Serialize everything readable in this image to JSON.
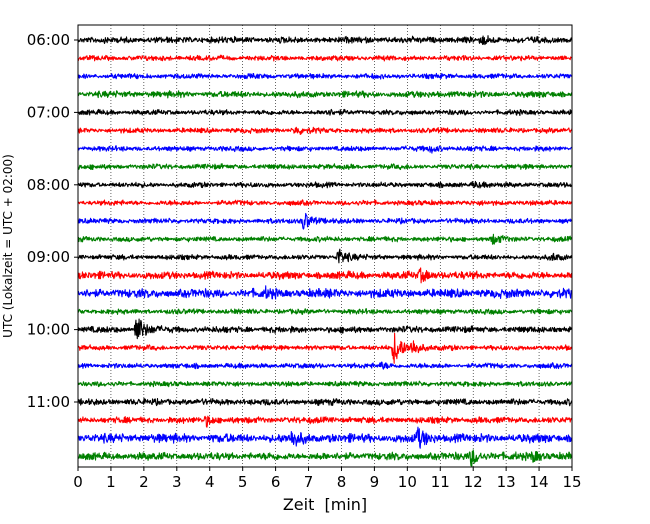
{
  "chart_data": {
    "type": "line",
    "title": "",
    "xlabel": "Zeit  [min]",
    "ylabel": "UTC (Lokalzeit = UTC + 02:00)",
    "xlim": [
      0,
      15
    ],
    "x_ticks": [
      "0",
      "1",
      "2",
      "3",
      "4",
      "5",
      "6",
      "7",
      "8",
      "9",
      "10",
      "11",
      "12",
      "13",
      "14",
      "15"
    ],
    "y_ticks": [
      "06:00",
      "07:00",
      "08:00",
      "09:00",
      "10:00",
      "11:00"
    ],
    "grid": "vertical-dotted",
    "colors": [
      "#000000",
      "#ff0000",
      "#0000ff",
      "#008000"
    ],
    "traces": [
      {
        "start": "06:00",
        "color": "#000000",
        "amplitude": 0.25,
        "events": [
          {
            "t": 12.3,
            "amp": 0.35
          }
        ]
      },
      {
        "start": "06:15",
        "color": "#ff0000",
        "amplitude": 0.2,
        "events": []
      },
      {
        "start": "06:30",
        "color": "#0000ff",
        "amplitude": 0.2,
        "events": []
      },
      {
        "start": "06:45",
        "color": "#008000",
        "amplitude": 0.25,
        "events": []
      },
      {
        "start": "07:00",
        "color": "#000000",
        "amplitude": 0.2,
        "events": [
          {
            "t": 7.5,
            "amp": 0.3
          }
        ]
      },
      {
        "start": "07:15",
        "color": "#ff0000",
        "amplitude": 0.2,
        "events": [
          {
            "t": 6.6,
            "amp": 0.35
          }
        ]
      },
      {
        "start": "07:30",
        "color": "#0000ff",
        "amplitude": 0.2,
        "events": [
          {
            "t": 10.7,
            "amp": 0.3
          }
        ]
      },
      {
        "start": "07:45",
        "color": "#008000",
        "amplitude": 0.2,
        "events": []
      },
      {
        "start": "08:00",
        "color": "#000000",
        "amplitude": 0.2,
        "events": [
          {
            "t": 12.0,
            "amp": 0.3
          }
        ]
      },
      {
        "start": "08:15",
        "color": "#ff0000",
        "amplitude": 0.2,
        "events": []
      },
      {
        "start": "08:30",
        "color": "#0000ff",
        "amplitude": 0.2,
        "events": [
          {
            "t": 6.85,
            "amp": 1.0
          }
        ]
      },
      {
        "start": "08:45",
        "color": "#008000",
        "amplitude": 0.2,
        "events": [
          {
            "t": 12.6,
            "amp": 0.45
          }
        ]
      },
      {
        "start": "09:00",
        "color": "#000000",
        "amplitude": 0.2,
        "events": [
          {
            "t": 7.9,
            "amp": 0.9
          },
          {
            "t": 14.4,
            "amp": 0.3
          }
        ]
      },
      {
        "start": "09:15",
        "color": "#ff0000",
        "amplitude": 0.3,
        "events": [
          {
            "t": 10.4,
            "amp": 0.6
          }
        ]
      },
      {
        "start": "09:30",
        "color": "#0000ff",
        "amplitude": 0.35,
        "events": [
          {
            "t": 5.7,
            "amp": 0.3
          }
        ]
      },
      {
        "start": "09:45",
        "color": "#008000",
        "amplitude": 0.2,
        "events": []
      },
      {
        "start": "10:00",
        "color": "#000000",
        "amplitude": 0.25,
        "events": [
          {
            "t": 1.75,
            "amp": 1.7
          }
        ]
      },
      {
        "start": "10:15",
        "color": "#ff0000",
        "amplitude": 0.2,
        "events": [
          {
            "t": 9.6,
            "amp": 1.7
          },
          {
            "t": 10.15,
            "amp": 0.8
          }
        ]
      },
      {
        "start": "10:30",
        "color": "#0000ff",
        "amplitude": 0.2,
        "events": [
          {
            "t": 9.2,
            "amp": 0.3
          }
        ]
      },
      {
        "start": "10:45",
        "color": "#008000",
        "amplitude": 0.2,
        "events": []
      },
      {
        "start": "11:00",
        "color": "#000000",
        "amplitude": 0.25,
        "events": []
      },
      {
        "start": "11:15",
        "color": "#ff0000",
        "amplitude": 0.25,
        "events": [
          {
            "t": 3.9,
            "amp": 0.5
          }
        ]
      },
      {
        "start": "11:30",
        "color": "#0000ff",
        "amplitude": 0.35,
        "events": [
          {
            "t": 6.5,
            "amp": 0.8
          },
          {
            "t": 10.3,
            "amp": 1.0
          }
        ]
      },
      {
        "start": "11:45",
        "color": "#008000",
        "amplitude": 0.3,
        "events": [
          {
            "t": 11.95,
            "amp": 0.9
          },
          {
            "t": 13.8,
            "amp": 0.5
          }
        ]
      }
    ]
  }
}
